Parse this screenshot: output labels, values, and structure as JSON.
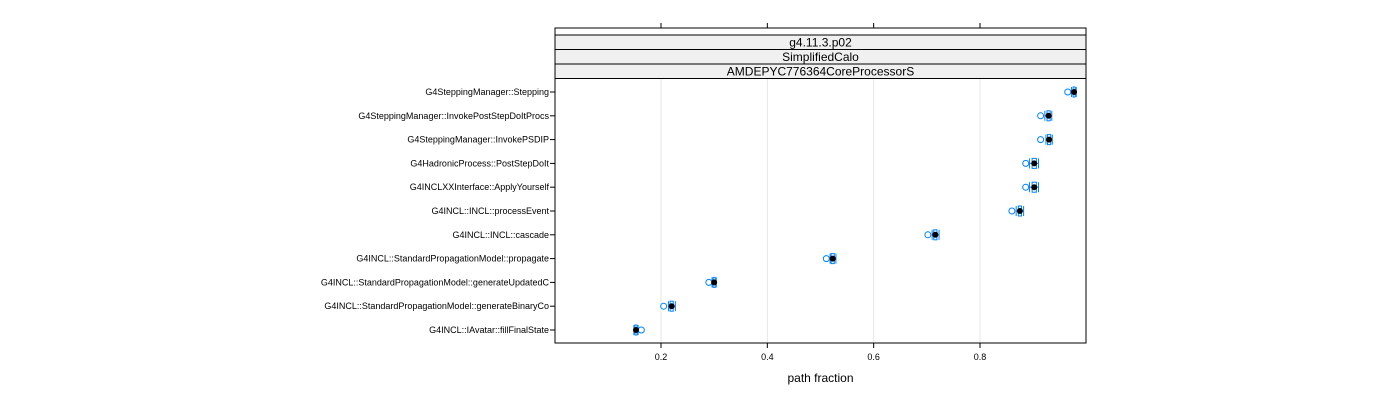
{
  "chart_data": {
    "type": "box",
    "strips": [
      "g4.11.3.p02",
      "SimplifiedCalo",
      "AMDEPYC776364CoreProcessorS"
    ],
    "xlabel": "path fraction",
    "xlim": [
      0,
      1
    ],
    "xticks": [
      0.2,
      0.4,
      0.6,
      0.8
    ],
    "grid": true,
    "colors": {
      "box": "#0080ff",
      "outlier": "#0080ff",
      "median": "#000000",
      "grid": "#e6e6e6"
    },
    "categories": [
      "G4SteppingManager::Stepping",
      "G4SteppingManager::InvokePostStepDoItProcs",
      "G4SteppingManager::InvokePSDIP",
      "G4HadronicProcess::PostStepDoIt",
      "G4INCLXXInterface::ApplyYourself",
      "G4INCL::INCL::processEvent",
      "G4INCL::INCL::cascade",
      "G4INCL::StandardPropagationModel::propagate",
      "G4INCL::StandardPropagationModel::generateUpdatedC",
      "G4INCL::StandardPropagationModel::generateBinaryCo",
      "G4INCL::IAvatar::fillFinalState"
    ],
    "boxes": [
      {
        "min": 0.972,
        "q1": 0.975,
        "median": 0.977,
        "q3": 0.979,
        "max": 0.981,
        "outliers": [
          0.965
        ]
      },
      {
        "min": 0.922,
        "q1": 0.926,
        "median": 0.929,
        "q3": 0.932,
        "max": 0.935,
        "outliers": [
          0.914
        ]
      },
      {
        "min": 0.924,
        "q1": 0.927,
        "median": 0.93,
        "q3": 0.933,
        "max": 0.936,
        "outliers": [
          0.914
        ]
      },
      {
        "min": 0.893,
        "q1": 0.898,
        "median": 0.902,
        "q3": 0.906,
        "max": 0.91,
        "outliers": [
          0.886
        ]
      },
      {
        "min": 0.893,
        "q1": 0.898,
        "median": 0.902,
        "q3": 0.906,
        "max": 0.91,
        "outliers": [
          0.886
        ]
      },
      {
        "min": 0.868,
        "q1": 0.872,
        "median": 0.875,
        "q3": 0.878,
        "max": 0.882,
        "outliers": [
          0.86
        ]
      },
      {
        "min": 0.71,
        "q1": 0.713,
        "median": 0.716,
        "q3": 0.719,
        "max": 0.723,
        "outliers": [
          0.702
        ]
      },
      {
        "min": 0.518,
        "q1": 0.52,
        "median": 0.523,
        "q3": 0.526,
        "max": 0.529,
        "outliers": [
          0.511
        ]
      },
      {
        "min": 0.296,
        "q1": 0.298,
        "median": 0.3,
        "q3": 0.302,
        "max": 0.304,
        "outliers": [
          0.29
        ]
      },
      {
        "min": 0.214,
        "q1": 0.217,
        "median": 0.22,
        "q3": 0.223,
        "max": 0.227,
        "outliers": [
          0.205
        ]
      },
      {
        "min": 0.149,
        "q1": 0.151,
        "median": 0.153,
        "q3": 0.155,
        "max": 0.157,
        "outliers": [
          0.163
        ]
      }
    ]
  }
}
